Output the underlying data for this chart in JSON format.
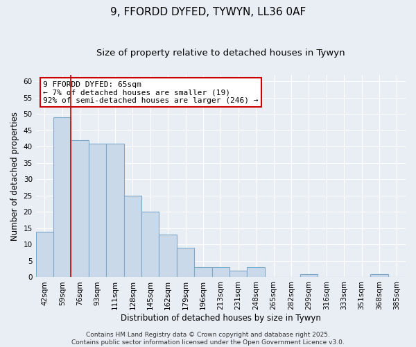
{
  "title": "9, FFORDD DYFED, TYWYN, LL36 0AF",
  "subtitle": "Size of property relative to detached houses in Tywyn",
  "xlabel": "Distribution of detached houses by size in Tywyn",
  "ylabel": "Number of detached properties",
  "bar_labels": [
    "42sqm",
    "59sqm",
    "76sqm",
    "93sqm",
    "111sqm",
    "128sqm",
    "145sqm",
    "162sqm",
    "179sqm",
    "196sqm",
    "213sqm",
    "231sqm",
    "248sqm",
    "265sqm",
    "282sqm",
    "299sqm",
    "316sqm",
    "333sqm",
    "351sqm",
    "368sqm",
    "385sqm"
  ],
  "bar_values": [
    14,
    49,
    42,
    41,
    41,
    25,
    20,
    13,
    9,
    3,
    3,
    2,
    3,
    0,
    0,
    1,
    0,
    0,
    0,
    1,
    0
  ],
  "bar_color": "#c9d9ea",
  "bar_edge_color": "#7fa8c8",
  "vline_x_index": 1.5,
  "vline_color": "#cc0000",
  "annotation_lines": [
    "9 FFORDD DYFED: 65sqm",
    "← 7% of detached houses are smaller (19)",
    "92% of semi-detached houses are larger (246) →"
  ],
  "annotation_box_color": "#ffffff",
  "annotation_box_edge_color": "#cc0000",
  "ylim": [
    0,
    62
  ],
  "yticks": [
    0,
    5,
    10,
    15,
    20,
    25,
    30,
    35,
    40,
    45,
    50,
    55,
    60
  ],
  "background_color": "#e8eef4",
  "grid_color": "#ffffff",
  "footer_lines": [
    "Contains HM Land Registry data © Crown copyright and database right 2025.",
    "Contains public sector information licensed under the Open Government Licence v3.0."
  ],
  "title_fontsize": 11,
  "subtitle_fontsize": 9.5,
  "axis_label_fontsize": 8.5,
  "tick_fontsize": 7.5,
  "footer_fontsize": 6.5,
  "annotation_fontsize": 8
}
